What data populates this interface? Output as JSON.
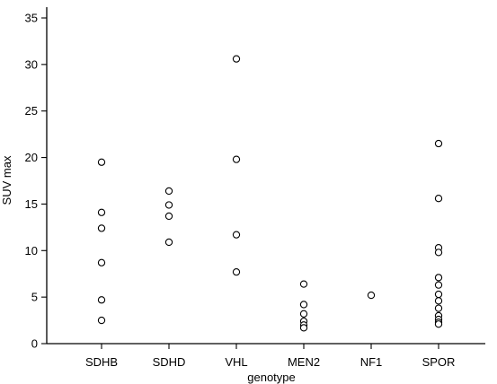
{
  "chart_data": {
    "type": "scatter",
    "title": "",
    "xlabel": "genotype",
    "ylabel": "SUV max",
    "categories": [
      "SDHB",
      "SDHD",
      "VHL",
      "MEN2",
      "NF1",
      "SPOR"
    ],
    "ylim": [
      0,
      36
    ],
    "yticks": [
      0,
      5,
      10,
      15,
      20,
      25,
      30,
      35
    ],
    "grid": false,
    "legend": "none",
    "series": [
      {
        "points": [
          {
            "x": "SDHB",
            "y": 19.5
          },
          {
            "x": "SDHB",
            "y": 14.1
          },
          {
            "x": "SDHB",
            "y": 12.4
          },
          {
            "x": "SDHB",
            "y": 8.7
          },
          {
            "x": "SDHB",
            "y": 4.7
          },
          {
            "x": "SDHB",
            "y": 2.5
          },
          {
            "x": "SDHD",
            "y": 16.4
          },
          {
            "x": "SDHD",
            "y": 14.9
          },
          {
            "x": "SDHD",
            "y": 13.7
          },
          {
            "x": "SDHD",
            "y": 10.9
          },
          {
            "x": "VHL",
            "y": 30.6
          },
          {
            "x": "VHL",
            "y": 19.8
          },
          {
            "x": "VHL",
            "y": 11.7
          },
          {
            "x": "VHL",
            "y": 7.7
          },
          {
            "x": "MEN2",
            "y": 6.4
          },
          {
            "x": "MEN2",
            "y": 4.2
          },
          {
            "x": "MEN2",
            "y": 3.2
          },
          {
            "x": "MEN2",
            "y": 2.4
          },
          {
            "x": "MEN2",
            "y": 2.0
          },
          {
            "x": "MEN2",
            "y": 1.7
          },
          {
            "x": "NF1",
            "y": 5.2
          },
          {
            "x": "SPOR",
            "y": 21.5
          },
          {
            "x": "SPOR",
            "y": 15.6
          },
          {
            "x": "SPOR",
            "y": 10.3
          },
          {
            "x": "SPOR",
            "y": 9.8
          },
          {
            "x": "SPOR",
            "y": 7.1
          },
          {
            "x": "SPOR",
            "y": 6.3
          },
          {
            "x": "SPOR",
            "y": 5.3
          },
          {
            "x": "SPOR",
            "y": 4.6
          },
          {
            "x": "SPOR",
            "y": 3.8
          },
          {
            "x": "SPOR",
            "y": 3.0
          },
          {
            "x": "SPOR",
            "y": 2.6
          },
          {
            "x": "SPOR",
            "y": 2.3
          },
          {
            "x": "SPOR",
            "y": 2.1
          }
        ]
      }
    ]
  }
}
